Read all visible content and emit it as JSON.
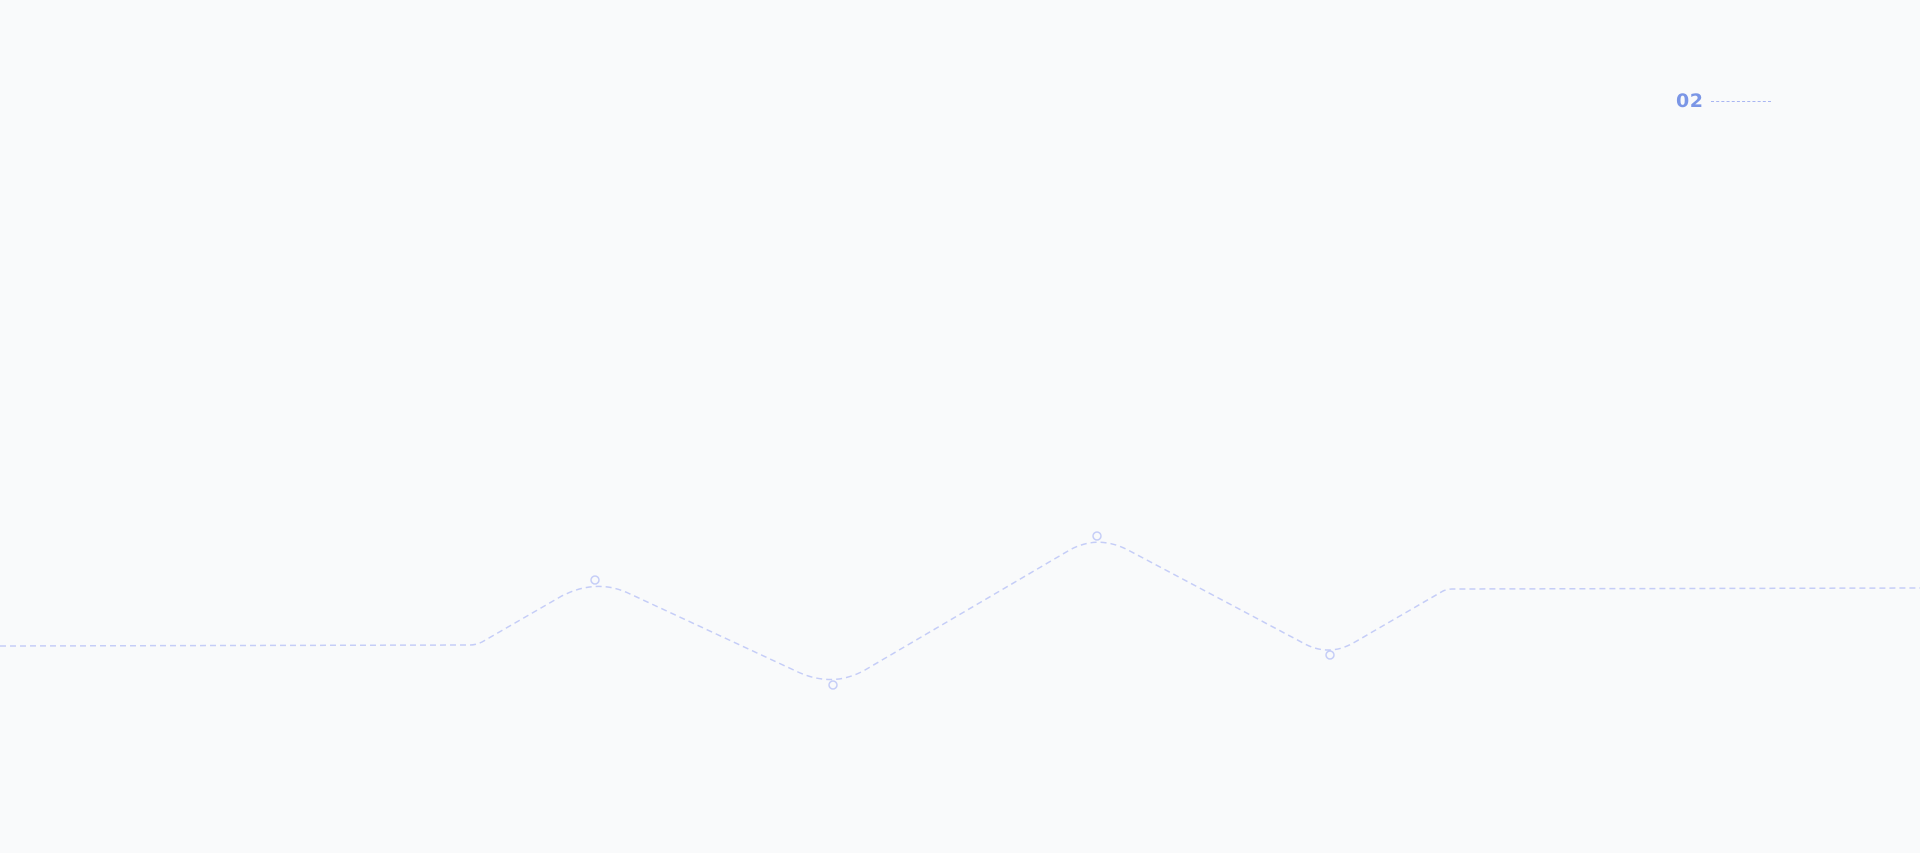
{
  "section": {
    "number": "02"
  },
  "colors": {
    "background": "#f9fafb",
    "accent": "#7b96e6",
    "line": "#c5cdf7"
  }
}
